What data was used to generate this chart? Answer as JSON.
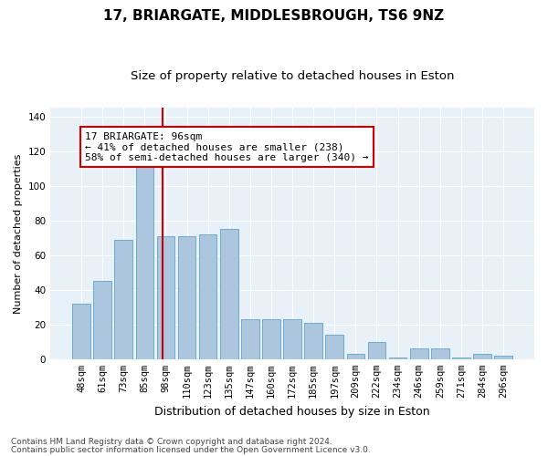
{
  "title1": "17, BRIARGATE, MIDDLESBROUGH, TS6 9NZ",
  "title2": "Size of property relative to detached houses in Eston",
  "xlabel": "Distribution of detached houses by size in Eston",
  "ylabel": "Number of detached properties",
  "categories": [
    "48sqm",
    "61sqm",
    "73sqm",
    "85sqm",
    "98sqm",
    "110sqm",
    "123sqm",
    "135sqm",
    "147sqm",
    "160sqm",
    "172sqm",
    "185sqm",
    "197sqm",
    "209sqm",
    "222sqm",
    "234sqm",
    "246sqm",
    "259sqm",
    "271sqm",
    "284sqm",
    "296sqm"
  ],
  "values": [
    32,
    45,
    69,
    119,
    71,
    71,
    72,
    75,
    23,
    23,
    23,
    21,
    14,
    3,
    10,
    1,
    6,
    6,
    1,
    3,
    2
  ],
  "bar_color": "#adc6e0",
  "bar_edgecolor": "#6aacd0",
  "vline_x": 3.87,
  "vline_color": "#cc0000",
  "annotation_text": "17 BRIARGATE: 96sqm\n← 41% of detached houses are smaller (238)\n58% of semi-detached houses are larger (340) →",
  "annotation_box_facecolor": "#ffffff",
  "annotation_box_edgecolor": "#cc0000",
  "ylim": [
    0,
    145
  ],
  "yticks": [
    0,
    20,
    40,
    60,
    80,
    100,
    120,
    140
  ],
  "footer1": "Contains HM Land Registry data © Crown copyright and database right 2024.",
  "footer2": "Contains public sector information licensed under the Open Government Licence v3.0.",
  "bg_color": "#e8f0f8",
  "title1_fontsize": 11,
  "title2_fontsize": 9.5,
  "xlabel_fontsize": 9,
  "ylabel_fontsize": 8,
  "tick_fontsize": 7.5,
  "annotation_fontsize": 8,
  "footer_fontsize": 6.5
}
